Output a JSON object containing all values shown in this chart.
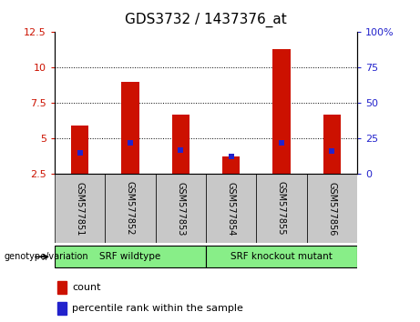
{
  "title": "GDS3732 / 1437376_at",
  "samples": [
    "GSM577851",
    "GSM577852",
    "GSM577853",
    "GSM577854",
    "GSM577855",
    "GSM577856"
  ],
  "red_values": [
    5.9,
    9.0,
    6.7,
    3.7,
    11.3,
    6.7
  ],
  "blue_values": [
    4.0,
    4.7,
    4.2,
    3.75,
    4.7,
    4.1
  ],
  "ylim_left": [
    2.5,
    12.5
  ],
  "ylim_right": [
    0,
    100
  ],
  "left_ticks": [
    2.5,
    5.0,
    7.5,
    10.0,
    12.5
  ],
  "left_tick_labels": [
    "2.5",
    "5",
    "7.5",
    "10",
    "12.5"
  ],
  "right_ticks": [
    0,
    25,
    50,
    75,
    100
  ],
  "right_tick_labels": [
    "0",
    "25",
    "50",
    "75",
    "100%"
  ],
  "grid_lines": [
    5.0,
    7.5,
    10.0
  ],
  "bar_color": "#cc1100",
  "blue_color": "#2222cc",
  "bar_width": 0.35,
  "baseline": 2.5,
  "group1_label": "SRF wildtype",
  "group2_label": "SRF knockout mutant",
  "group1_indices": [
    0,
    1,
    2
  ],
  "group2_indices": [
    3,
    4,
    5
  ],
  "group_color": "#88ee88",
  "sample_bg_color": "#c8c8c8",
  "legend_count_label": "count",
  "legend_pct_label": "percentile rank within the sample",
  "left_axis_color": "#cc1100",
  "right_axis_color": "#2222cc",
  "title_fontsize": 11,
  "tick_fontsize": 8,
  "label_fontsize": 8
}
